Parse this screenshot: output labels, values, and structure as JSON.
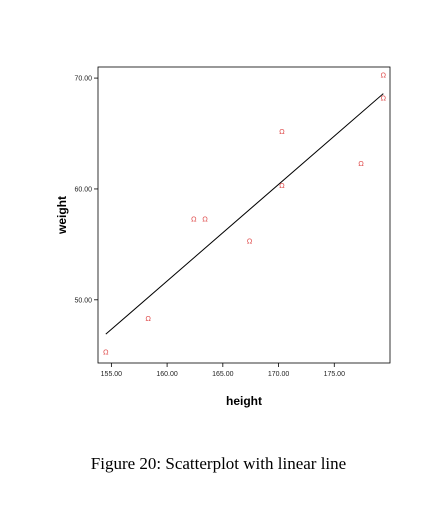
{
  "chart_data": {
    "type": "scatter",
    "xlabel": "height",
    "ylabel": "weight",
    "xlim": [
      153.8,
      180.0
    ],
    "ylim": [
      44.3,
      71.0
    ],
    "x_ticks": [
      "155.00",
      "160.00",
      "165.00",
      "170.00",
      "175.00"
    ],
    "x_tick_values": [
      155,
      160,
      165,
      170,
      175
    ],
    "y_ticks": [
      "50.00",
      "60.00",
      "70.00"
    ],
    "y_tick_values": [
      50,
      60,
      70
    ],
    "marker": "Ω",
    "marker_color": "#e05050",
    "grid": false,
    "points": [
      {
        "x": 154.5,
        "y": 45.3
      },
      {
        "x": 158.3,
        "y": 48.3
      },
      {
        "x": 162.4,
        "y": 57.3
      },
      {
        "x": 163.4,
        "y": 57.3
      },
      {
        "x": 167.4,
        "y": 55.3
      },
      {
        "x": 170.3,
        "y": 65.2
      },
      {
        "x": 170.3,
        "y": 60.3
      },
      {
        "x": 177.4,
        "y": 62.3
      },
      {
        "x": 179.4,
        "y": 70.3
      },
      {
        "x": 179.4,
        "y": 68.2
      }
    ],
    "fit_line": {
      "x": [
        154.5,
        179.4
      ],
      "y": [
        46.9,
        68.6
      ]
    }
  },
  "caption": "Figure 20: Scatterplot with linear line"
}
